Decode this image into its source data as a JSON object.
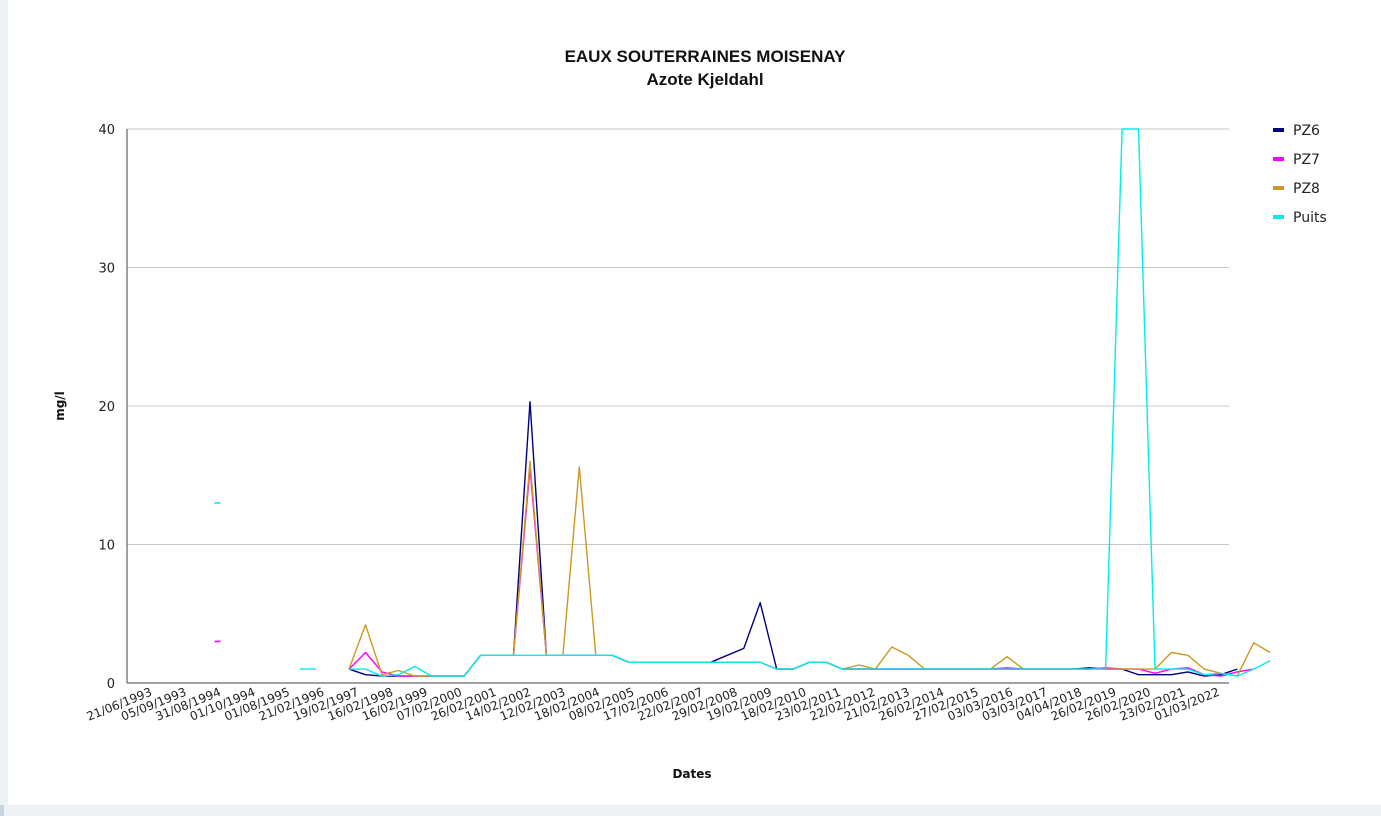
{
  "chart_data": {
    "type": "line",
    "title": "EAUX SOUTERRAINES MOISENAY",
    "subtitle": "Azote Kjeldahl",
    "xlabel": "Dates",
    "ylabel": "mg/l",
    "ylim": [
      0,
      40
    ],
    "yticks": [
      0,
      10,
      20,
      30,
      40
    ],
    "grid": true,
    "legend_position": "right",
    "x_tick_labels": [
      "21/06/1993",
      "05/09/1993",
      "31/08/1994",
      "01/10/1994",
      "01/08/1995",
      "21/02/1996",
      "19/02/1997",
      "16/02/1998",
      "16/02/1999",
      "07/02/2000",
      "26/02/2001",
      "14/02/2002",
      "12/02/2003",
      "18/02/2004",
      "08/02/2005",
      "17/02/2006",
      "22/02/2007",
      "29/02/2008",
      "19/02/2009",
      "18/02/2010",
      "23/02/2011",
      "22/02/2012",
      "21/02/2013",
      "26/02/2014",
      "27/02/2015",
      "03/03/2016",
      "03/03/2017",
      "04/04/2018",
      "26/02/2019",
      "26/02/2020",
      "23/02/2021",
      "01/03/2022"
    ],
    "x_count": 67,
    "series": [
      {
        "name": "PZ6",
        "color": "#000080",
        "points": [
          [
            13,
            1.0
          ],
          [
            14,
            0.6
          ],
          [
            15,
            0.5
          ],
          [
            16,
            0.5
          ],
          [
            17,
            0.5
          ],
          [
            18,
            0.5
          ],
          [
            19,
            0.5
          ],
          [
            20,
            0.5
          ],
          [
            21,
            2.0
          ],
          [
            22,
            2.0
          ],
          [
            23,
            2.0
          ],
          [
            24,
            20.3
          ],
          [
            25,
            2.0
          ],
          [
            26,
            2.0
          ],
          [
            27,
            2.0
          ],
          [
            28,
            2.0
          ],
          [
            29,
            2.0
          ],
          [
            30,
            1.5
          ],
          [
            31,
            1.5
          ],
          [
            32,
            1.5
          ],
          [
            33,
            1.5
          ],
          [
            34,
            1.5
          ],
          [
            35,
            1.5
          ],
          [
            36,
            2.0
          ],
          [
            37,
            2.5
          ],
          [
            38,
            5.8
          ],
          [
            39,
            1.0
          ],
          [
            40,
            1.0
          ],
          [
            41,
            1.5
          ],
          [
            42,
            1.5
          ],
          [
            43,
            1.0
          ],
          [
            44,
            1.0
          ],
          [
            45,
            1.0
          ],
          [
            46,
            1.0
          ],
          [
            47,
            1.0
          ],
          [
            48,
            1.0
          ],
          [
            49,
            1.0
          ],
          [
            50,
            1.0
          ],
          [
            51,
            1.0
          ],
          [
            52,
            1.0
          ],
          [
            53,
            1.0
          ],
          [
            54,
            1.0
          ],
          [
            55,
            1.0
          ],
          [
            56,
            1.0
          ],
          [
            57,
            1.0
          ],
          [
            58,
            1.1
          ],
          [
            59,
            1.0
          ],
          [
            60,
            1.0
          ],
          [
            61,
            0.6
          ],
          [
            62,
            0.6
          ],
          [
            63,
            0.6
          ],
          [
            64,
            0.8
          ],
          [
            65,
            0.5
          ],
          [
            66,
            0.6
          ],
          [
            67,
            1.0
          ]
        ]
      },
      {
        "name": "PZ7",
        "color": "#ff00ff",
        "points": [
          [
            5,
            3.0
          ],
          [
            13,
            1.0
          ],
          [
            14,
            2.2
          ],
          [
            15,
            0.8
          ],
          [
            16,
            0.5
          ],
          [
            17,
            0.5
          ],
          [
            18,
            0.5
          ],
          [
            19,
            0.5
          ],
          [
            20,
            0.5
          ],
          [
            21,
            2.0
          ],
          [
            22,
            2.0
          ],
          [
            23,
            2.0
          ],
          [
            24,
            15.5
          ],
          [
            25,
            2.0
          ],
          [
            26,
            2.0
          ],
          [
            27,
            2.0
          ],
          [
            28,
            2.0
          ],
          [
            29,
            2.0
          ],
          [
            30,
            1.5
          ],
          [
            31,
            1.5
          ],
          [
            32,
            1.5
          ],
          [
            33,
            1.5
          ],
          [
            34,
            1.5
          ],
          [
            35,
            1.5
          ],
          [
            36,
            1.5
          ],
          [
            37,
            1.5
          ],
          [
            38,
            1.5
          ],
          [
            39,
            1.0
          ],
          [
            40,
            1.0
          ],
          [
            41,
            1.5
          ],
          [
            42,
            1.5
          ],
          [
            43,
            1.0
          ],
          [
            44,
            1.0
          ],
          [
            45,
            1.0
          ],
          [
            46,
            1.0
          ],
          [
            47,
            1.0
          ],
          [
            48,
            1.0
          ],
          [
            49,
            1.0
          ],
          [
            50,
            1.0
          ],
          [
            51,
            1.0
          ],
          [
            52,
            1.0
          ],
          [
            53,
            1.1
          ],
          [
            54,
            1.0
          ],
          [
            55,
            1.0
          ],
          [
            56,
            1.0
          ],
          [
            57,
            1.0
          ],
          [
            58,
            1.0
          ],
          [
            59,
            1.1
          ],
          [
            60,
            1.0
          ],
          [
            61,
            1.0
          ],
          [
            62,
            0.7
          ],
          [
            63,
            1.0
          ],
          [
            64,
            1.1
          ],
          [
            65,
            0.6
          ],
          [
            66,
            0.5
          ],
          [
            67,
            0.8
          ],
          [
            68,
            1.0
          ]
        ]
      },
      {
        "name": "PZ8",
        "color": "#cc9922",
        "points": [
          [
            13,
            1.0
          ],
          [
            14,
            4.2
          ],
          [
            15,
            0.6
          ],
          [
            16,
            0.9
          ],
          [
            17,
            0.5
          ],
          [
            18,
            0.5
          ],
          [
            19,
            0.5
          ],
          [
            20,
            0.5
          ],
          [
            21,
            2.0
          ],
          [
            22,
            2.0
          ],
          [
            23,
            2.0
          ],
          [
            24,
            16.0
          ],
          [
            25,
            2.0
          ],
          [
            26,
            2.0
          ],
          [
            27,
            15.6
          ],
          [
            28,
            2.0
          ],
          [
            29,
            2.0
          ],
          [
            30,
            1.5
          ],
          [
            31,
            1.5
          ],
          [
            32,
            1.5
          ],
          [
            33,
            1.5
          ],
          [
            34,
            1.5
          ],
          [
            35,
            1.5
          ],
          [
            36,
            1.5
          ],
          [
            37,
            1.5
          ],
          [
            38,
            1.5
          ],
          [
            39,
            1.0
          ],
          [
            40,
            1.0
          ],
          [
            41,
            1.5
          ],
          [
            42,
            1.5
          ],
          [
            43,
            1.0
          ],
          [
            44,
            1.3
          ],
          [
            45,
            1.0
          ],
          [
            46,
            2.6
          ],
          [
            47,
            2.0
          ],
          [
            48,
            1.0
          ],
          [
            49,
            1.0
          ],
          [
            50,
            1.0
          ],
          [
            51,
            1.0
          ],
          [
            52,
            1.0
          ],
          [
            53,
            1.9
          ],
          [
            54,
            1.0
          ],
          [
            55,
            1.0
          ],
          [
            56,
            1.0
          ],
          [
            57,
            1.0
          ],
          [
            58,
            1.0
          ],
          [
            59,
            1.0
          ],
          [
            60,
            1.0
          ],
          [
            61,
            1.0
          ],
          [
            62,
            1.0
          ],
          [
            63,
            2.2
          ],
          [
            64,
            2.0
          ],
          [
            65,
            1.0
          ],
          [
            66,
            0.7
          ],
          [
            67,
            0.5
          ],
          [
            68,
            2.9
          ],
          [
            69,
            2.2
          ]
        ]
      },
      {
        "name": "Puits",
        "color": "#00eeee",
        "points": [
          [
            5,
            13.0
          ],
          [
            10,
            1.0
          ],
          [
            11,
            1.0
          ],
          [
            13,
            1.0
          ],
          [
            14,
            1.0
          ],
          [
            15,
            0.5
          ],
          [
            16,
            0.6
          ],
          [
            17,
            1.2
          ],
          [
            18,
            0.5
          ],
          [
            19,
            0.5
          ],
          [
            20,
            0.5
          ],
          [
            21,
            2.0
          ],
          [
            22,
            2.0
          ],
          [
            23,
            2.0
          ],
          [
            24,
            2.0
          ],
          [
            25,
            2.0
          ],
          [
            26,
            2.0
          ],
          [
            27,
            2.0
          ],
          [
            28,
            2.0
          ],
          [
            29,
            2.0
          ],
          [
            30,
            1.5
          ],
          [
            31,
            1.5
          ],
          [
            32,
            1.5
          ],
          [
            33,
            1.5
          ],
          [
            34,
            1.5
          ],
          [
            35,
            1.5
          ],
          [
            36,
            1.5
          ],
          [
            37,
            1.5
          ],
          [
            38,
            1.5
          ],
          [
            39,
            1.0
          ],
          [
            40,
            1.0
          ],
          [
            41,
            1.5
          ],
          [
            42,
            1.5
          ],
          [
            43,
            1.0
          ],
          [
            44,
            1.0
          ],
          [
            45,
            1.0
          ],
          [
            46,
            1.0
          ],
          [
            47,
            1.0
          ],
          [
            48,
            1.0
          ],
          [
            49,
            1.0
          ],
          [
            50,
            1.0
          ],
          [
            51,
            1.0
          ],
          [
            52,
            1.0
          ],
          [
            53,
            1.0
          ],
          [
            54,
            1.0
          ],
          [
            55,
            1.0
          ],
          [
            56,
            1.0
          ],
          [
            57,
            1.0
          ],
          [
            58,
            1.0
          ],
          [
            59,
            1.0
          ],
          [
            60,
            40.0
          ],
          [
            61,
            40.0
          ],
          [
            62,
            1.0
          ],
          [
            63,
            1.0
          ],
          [
            64,
            1.0
          ],
          [
            65,
            0.6
          ],
          [
            66,
            0.7
          ],
          [
            67,
            0.5
          ],
          [
            68,
            1.0
          ],
          [
            69,
            1.6
          ]
        ]
      }
    ]
  }
}
